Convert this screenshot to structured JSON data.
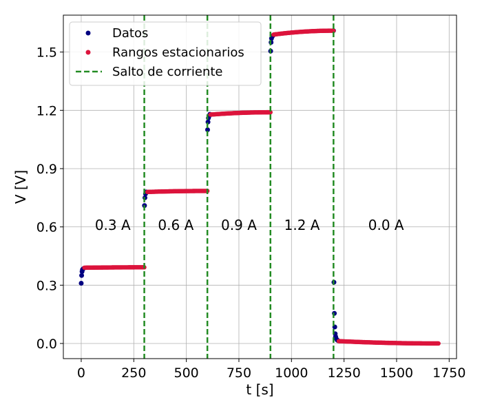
{
  "chart_data": {
    "type": "scatter",
    "xlabel": "t [s]",
    "ylabel": "V [V]",
    "xlim": [
      -85,
      1785
    ],
    "ylim": [
      -0.078,
      1.69
    ],
    "xticks": [
      0,
      250,
      500,
      750,
      1000,
      1250,
      1500,
      1750
    ],
    "yticks": [
      0.0,
      0.3,
      0.6,
      0.9,
      1.2,
      1.5
    ],
    "ytick_labels": [
      "0.0",
      "0.3",
      "0.6",
      "0.9",
      "1.2",
      "1.5"
    ],
    "grid": true,
    "legend_position": "top-left",
    "legend": [
      {
        "label": "Datos",
        "kind": "marker",
        "color": "#000080"
      },
      {
        "label": "Rangos estacionarios",
        "kind": "marker",
        "color": "#dc143c"
      },
      {
        "label": "Salto de corriente",
        "kind": "dashed-line",
        "color": "#228b22"
      }
    ],
    "current_jumps": [
      300,
      600,
      900,
      1200
    ],
    "annotations": [
      {
        "text": "0.3 A",
        "x": 150,
        "y": 0.585
      },
      {
        "text": "0.6 A",
        "x": 450,
        "y": 0.585
      },
      {
        "text": "0.9 A",
        "x": 750,
        "y": 0.585
      },
      {
        "text": "1.2 A",
        "x": 1050,
        "y": 0.585
      },
      {
        "text": "0.0 A",
        "x": 1450,
        "y": 0.585
      }
    ],
    "series": [
      {
        "name": "Datos",
        "color": "#000080",
        "points": [
          [
            0,
            0.31
          ],
          [
            2,
            0.35
          ],
          [
            4,
            0.37
          ],
          [
            6,
            0.38
          ],
          [
            10,
            0.385
          ],
          [
            301,
            0.71
          ],
          [
            303,
            0.75
          ],
          [
            306,
            0.77
          ],
          [
            309,
            0.78
          ],
          [
            601,
            1.1
          ],
          [
            603,
            1.14
          ],
          [
            605,
            1.16
          ],
          [
            608,
            1.17
          ],
          [
            612,
            1.18
          ],
          [
            901,
            1.505
          ],
          [
            903,
            1.55
          ],
          [
            905,
            1.57
          ],
          [
            908,
            1.58
          ],
          [
            912,
            1.585
          ],
          [
            1200,
            1.61
          ],
          [
            1202,
            0.315
          ],
          [
            1204,
            0.155
          ],
          [
            1206,
            0.085
          ],
          [
            1208,
            0.05
          ],
          [
            1210,
            0.035
          ],
          [
            1213,
            0.025
          ],
          [
            1217,
            0.018
          ],
          [
            1222,
            0.014
          ]
        ]
      },
      {
        "name": "Rangos estacionarios",
        "color": "#dc143c",
        "segments": [
          {
            "t_start": 15,
            "t_end": 300,
            "v_start": 0.39,
            "v_end": 0.392
          },
          {
            "t_start": 315,
            "t_end": 600,
            "v_start": 0.78,
            "v_end": 0.785
          },
          {
            "t_start": 615,
            "t_end": 900,
            "v_start": 1.178,
            "v_end": 1.19
          },
          {
            "t_start": 915,
            "t_end": 1200,
            "v_start": 1.59,
            "v_end": 1.61
          },
          {
            "t_start": 1225,
            "t_end": 1700,
            "v_start": 0.012,
            "v_end": 0.0
          }
        ]
      }
    ]
  }
}
